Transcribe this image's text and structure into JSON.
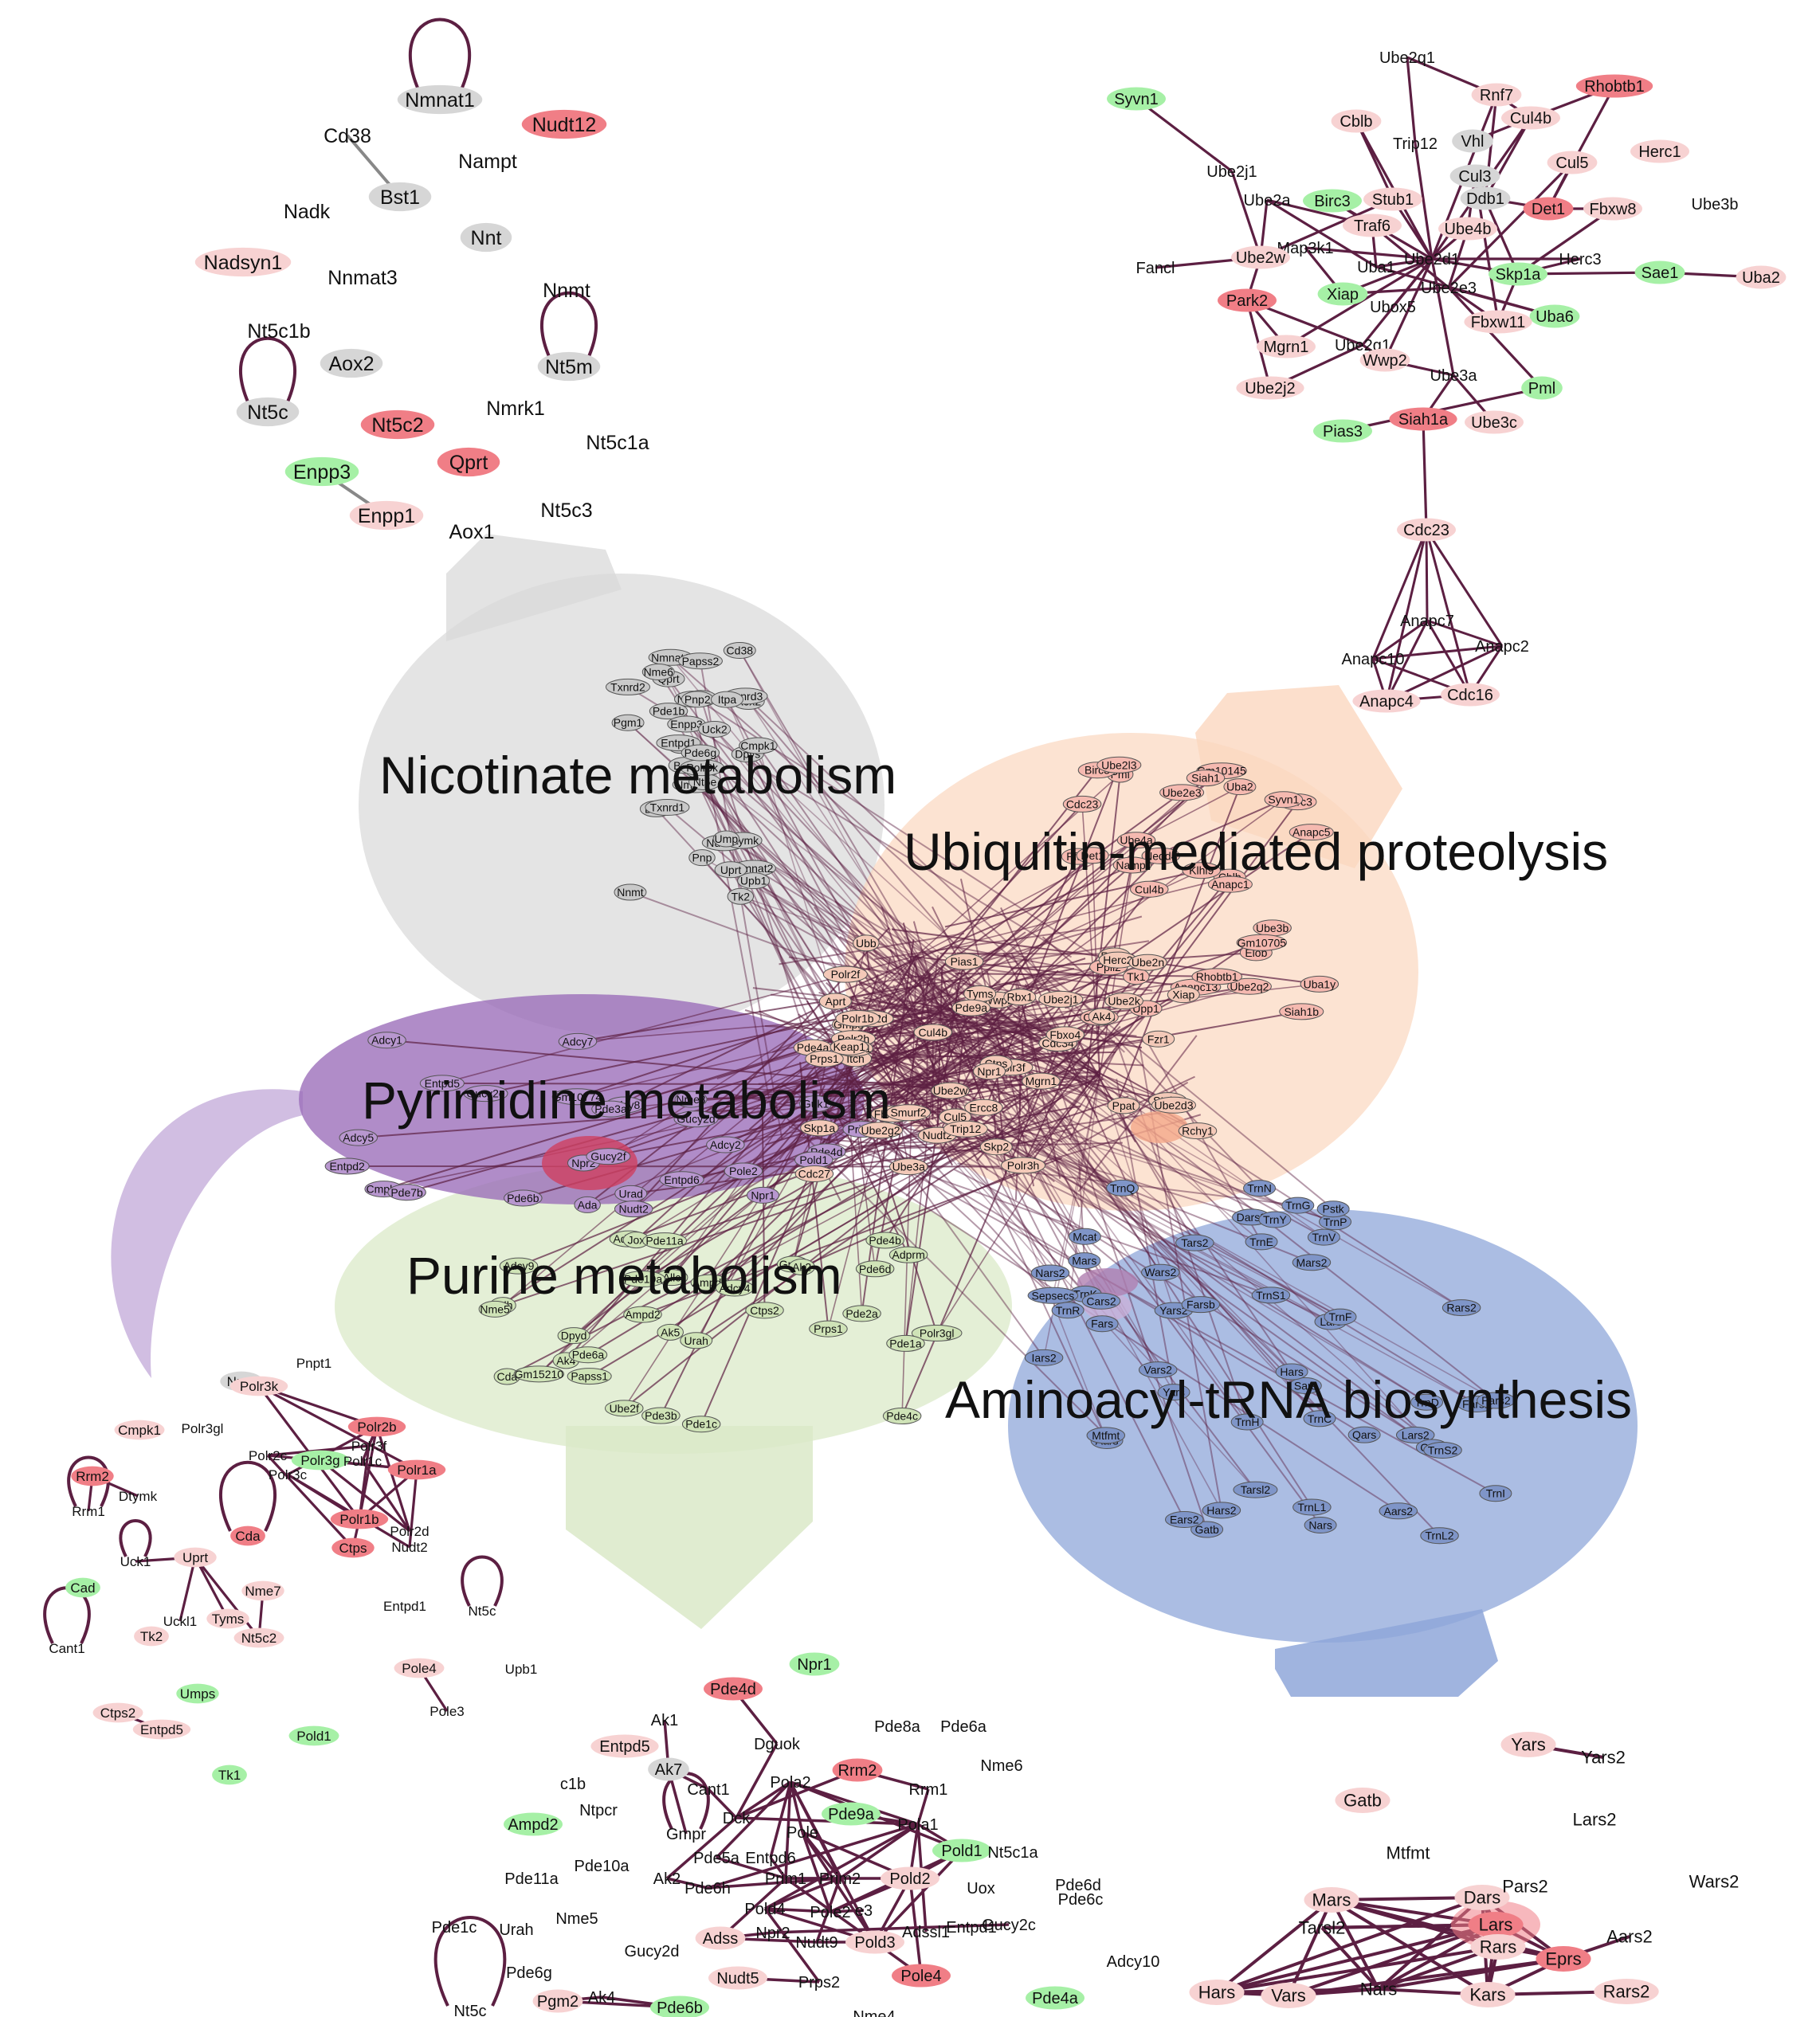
{
  "colors": {
    "edge": "#5c1f42",
    "pos_strong": "#f07e86",
    "pos_light": "#f7d2d2",
    "neg": "#a6f0a6",
    "neutral": "#d6d6d6",
    "nicotinate": "#d9d9d9",
    "ubiquitin": "#fbd7bf",
    "pyrimidine": "#9a6bb8",
    "purine": "#dbe9c8",
    "aminoacyl": "#8fa7d9"
  },
  "pathways": {
    "nicotinate": "Nicotinate metabolism",
    "ubiquitin": "Ubiquitin-mediated proteolysis",
    "pyrimidine": "Pyrimidine metabolism",
    "purine": "Purine metabolism",
    "aminoacyl": "Aminoacyl-tRNA biosynthesis"
  },
  "modules": {
    "nicotinate": {
      "nodes": [
        {
          "label": "Nmnat1",
          "c": "neutral"
        },
        {
          "label": "Nudt12",
          "c": "pos_strong"
        },
        {
          "label": "Cd38",
          "c": "none"
        },
        {
          "label": "Nampt",
          "c": "none"
        },
        {
          "label": "Bst1",
          "c": "neutral"
        },
        {
          "label": "Nadk",
          "c": "none"
        },
        {
          "label": "Nnt",
          "c": "neutral"
        },
        {
          "label": "Nadsyn1",
          "c": "pos_light"
        },
        {
          "label": "Nnmat3",
          "c": "none"
        },
        {
          "label": "Nnmt",
          "c": "none"
        },
        {
          "label": "Nt5c1b",
          "c": "none"
        },
        {
          "label": "Aox2",
          "c": "neutral"
        },
        {
          "label": "Nt5m",
          "c": "neutral"
        },
        {
          "label": "Nt5c",
          "c": "neutral"
        },
        {
          "label": "Nt5c2",
          "c": "pos_strong"
        },
        {
          "label": "Nmrk1",
          "c": "none"
        },
        {
          "label": "Nt5c1a",
          "c": "none"
        },
        {
          "label": "Qprt",
          "c": "pos_strong"
        },
        {
          "label": "Enpp3",
          "c": "neg"
        },
        {
          "label": "Enpp1",
          "c": "pos_light"
        },
        {
          "label": "Aox1",
          "c": "none"
        },
        {
          "label": "Nt5c3",
          "c": "none"
        }
      ],
      "edges": [
        [
          "Cd38",
          "Bst1"
        ],
        [
          "Enpp3",
          "Enpp1"
        ]
      ],
      "loops": [
        "Nmnat1",
        "Nt5m",
        "Nt5c"
      ]
    },
    "ubiquitin": {
      "nodes": [
        {
          "label": "Ube2q1",
          "c": "none"
        },
        {
          "label": "Syvn1",
          "c": "neg"
        },
        {
          "label": "Rnf7",
          "c": "pos_light"
        },
        {
          "label": "Rhobtb1",
          "c": "pos_strong"
        },
        {
          "label": "Cblb",
          "c": "pos_light"
        },
        {
          "label": "Cul4b",
          "c": "pos_light"
        },
        {
          "label": "Trip12",
          "c": "none"
        },
        {
          "label": "Vhl",
          "c": "neutral"
        },
        {
          "label": "Herc1",
          "c": "pos_light"
        },
        {
          "label": "Cul5",
          "c": "pos_light"
        },
        {
          "label": "Ube2j1",
          "c": "none"
        },
        {
          "label": "Cul3",
          "c": "neutral"
        },
        {
          "label": "Ube2a",
          "c": "none"
        },
        {
          "label": "Birc3",
          "c": "neg"
        },
        {
          "label": "Stub1",
          "c": "pos_light"
        },
        {
          "label": "Ddb1",
          "c": "neutral"
        },
        {
          "label": "Det1",
          "c": "pos_strong"
        },
        {
          "label": "Fbxw8",
          "c": "pos_light"
        },
        {
          "label": "Ube3b",
          "c": "none"
        },
        {
          "label": "Traf6",
          "c": "pos_light"
        },
        {
          "label": "Ube4b",
          "c": "pos_light"
        },
        {
          "label": "Map3k1",
          "c": "none"
        },
        {
          "label": "Ube2d1",
          "c": "none"
        },
        {
          "label": "Herc3",
          "c": "none"
        },
        {
          "label": "Fancl",
          "c": "none"
        },
        {
          "label": "Ube2w",
          "c": "pos_light"
        },
        {
          "label": "Uba1",
          "c": "none"
        },
        {
          "label": "Skp1a",
          "c": "neg"
        },
        {
          "label": "Sae1",
          "c": "neg"
        },
        {
          "label": "Uba2",
          "c": "pos_light"
        },
        {
          "label": "Park2",
          "c": "pos_strong"
        },
        {
          "label": "Xiap",
          "c": "neg"
        },
        {
          "label": "Ube2e3",
          "c": "none"
        },
        {
          "label": "Ubox5",
          "c": "none"
        },
        {
          "label": "Uba6",
          "c": "neg"
        },
        {
          "label": "Fbxw11",
          "c": "pos_light"
        },
        {
          "label": "Mgrn1",
          "c": "pos_light"
        },
        {
          "label": "Ube2g1",
          "c": "none"
        },
        {
          "label": "Wwp2",
          "c": "pos_light"
        },
        {
          "label": "Ube3a",
          "c": "none"
        },
        {
          "label": "Pml",
          "c": "neg"
        },
        {
          "label": "Ube2j2",
          "c": "pos_light"
        },
        {
          "label": "Siah1a",
          "c": "pos_strong"
        },
        {
          "label": "Ube3c",
          "c": "pos_light"
        },
        {
          "label": "Pias3",
          "c": "neg"
        },
        {
          "label": "Cdc23",
          "c": "pos_light"
        },
        {
          "label": "Anapc7",
          "c": "none"
        },
        {
          "label": "Anapc2",
          "c": "none"
        },
        {
          "label": "Anapc10",
          "c": "none"
        },
        {
          "label": "Anapc4",
          "c": "pos_light"
        },
        {
          "label": "Cdc16",
          "c": "pos_light"
        }
      ]
    },
    "pyrimidine": {
      "nodes": [
        {
          "label": "Pnpt1",
          "c": "none"
        },
        {
          "label": "Npr2",
          "c": "neutral"
        },
        {
          "label": "Polr3k",
          "c": "pos_light"
        },
        {
          "label": "Cmpk1",
          "c": "pos_light"
        },
        {
          "label": "Polr3gl",
          "c": "none"
        },
        {
          "label": "Polr2b",
          "c": "pos_strong"
        },
        {
          "label": "Polr3f",
          "c": "none"
        },
        {
          "label": "Polr2c",
          "c": "none"
        },
        {
          "label": "Polr3g",
          "c": "neg"
        },
        {
          "label": "Polr1c",
          "c": "none"
        },
        {
          "label": "Polr1a",
          "c": "pos_strong"
        },
        {
          "label": "Polr3c",
          "c": "none"
        },
        {
          "label": "Rrm2",
          "c": "pos_strong"
        },
        {
          "label": "Dtymk",
          "c": "none"
        },
        {
          "label": "Rrm1",
          "c": "none"
        },
        {
          "label": "Cda",
          "c": "pos_strong"
        },
        {
          "label": "Polr1b",
          "c": "pos_strong"
        },
        {
          "label": "Polr2d",
          "c": "none"
        },
        {
          "label": "Ctps",
          "c": "pos_strong"
        },
        {
          "label": "Nudt2",
          "c": "none"
        },
        {
          "label": "Uck1",
          "c": "none"
        },
        {
          "label": "Uprt",
          "c": "pos_light"
        },
        {
          "label": "Cad",
          "c": "neg"
        },
        {
          "label": "Nme7",
          "c": "pos_light"
        },
        {
          "label": "Nt5c",
          "c": "none"
        },
        {
          "label": "Entpd1",
          "c": "none"
        },
        {
          "label": "Uckl1",
          "c": "none"
        },
        {
          "label": "Tyms",
          "c": "pos_light"
        },
        {
          "label": "Tk2",
          "c": "pos_light"
        },
        {
          "label": "Nt5c2",
          "c": "pos_light"
        },
        {
          "label": "Cant1",
          "c": "none"
        },
        {
          "label": "Pole4",
          "c": "pos_light"
        },
        {
          "label": "Upb1",
          "c": "none"
        },
        {
          "label": "Umps",
          "c": "neg"
        },
        {
          "label": "Pole3",
          "c": "none"
        },
        {
          "label": "Ctps2",
          "c": "pos_light"
        },
        {
          "label": "Entpd5",
          "c": "pos_light"
        },
        {
          "label": "Pold1",
          "c": "neg"
        },
        {
          "label": "Tk1",
          "c": "neg"
        }
      ]
    },
    "purine": {
      "nodes": [
        {
          "label": "Pde4d",
          "c": "pos_strong"
        },
        {
          "label": "Npr1",
          "c": "neg"
        },
        {
          "label": "Ak1",
          "c": "none"
        },
        {
          "label": "Dguok",
          "c": "none"
        },
        {
          "label": "Entpd5",
          "c": "pos_light"
        },
        {
          "label": "Pde8a",
          "c": "none"
        },
        {
          "label": "Pde6a",
          "c": "none"
        },
        {
          "label": "Ak7",
          "c": "neutral"
        },
        {
          "label": "Rrm2",
          "c": "pos_strong"
        },
        {
          "label": "Nme6",
          "c": "none"
        },
        {
          "label": "c1b",
          "c": "none"
        },
        {
          "label": "Cant1",
          "c": "none"
        },
        {
          "label": "Pola2",
          "c": "none"
        },
        {
          "label": "Rrm1",
          "c": "none"
        },
        {
          "label": "Ntpcr",
          "c": "none"
        },
        {
          "label": "Pde9a",
          "c": "neg"
        },
        {
          "label": "Ampd2",
          "c": "neg"
        },
        {
          "label": "Gmpr",
          "c": "none"
        },
        {
          "label": "Dck",
          "c": "none"
        },
        {
          "label": "Pole",
          "c": "none"
        },
        {
          "label": "Pola1",
          "c": "none"
        },
        {
          "label": "Pde5a",
          "c": "none"
        },
        {
          "label": "Entpd6",
          "c": "none"
        },
        {
          "label": "Pold1",
          "c": "neg"
        },
        {
          "label": "Nt5c1a",
          "c": "none"
        },
        {
          "label": "Pde10a",
          "c": "none"
        },
        {
          "label": "Pde11a",
          "c": "none"
        },
        {
          "label": "Ak2",
          "c": "none"
        },
        {
          "label": "Pde6h",
          "c": "none"
        },
        {
          "label": "Prim1",
          "c": "none"
        },
        {
          "label": "Prim2",
          "c": "none"
        },
        {
          "label": "Pold2",
          "c": "pos_light"
        },
        {
          "label": "Uox",
          "c": "none"
        },
        {
          "label": "Pde6d",
          "c": "none"
        },
        {
          "label": "Pde6c",
          "c": "none"
        },
        {
          "label": "Nme5",
          "c": "none"
        },
        {
          "label": "Pde1c",
          "c": "none"
        },
        {
          "label": "Urah",
          "c": "none"
        },
        {
          "label": "Pold4",
          "c": "none"
        },
        {
          "label": "Pole2",
          "c": "none"
        },
        {
          "label": "e3",
          "c": "none"
        },
        {
          "label": "Adss",
          "c": "pos_light"
        },
        {
          "label": "Npr2",
          "c": "none"
        },
        {
          "label": "Adssl1",
          "c": "none"
        },
        {
          "label": "Entpd1",
          "c": "none"
        },
        {
          "label": "Gucy2c",
          "c": "none"
        },
        {
          "label": "Adcy10",
          "c": "none"
        },
        {
          "label": "Gucy2d",
          "c": "none"
        },
        {
          "label": "Nudt9",
          "c": "none"
        },
        {
          "label": "Pold3",
          "c": "pos_light"
        },
        {
          "label": "Pde6g",
          "c": "none"
        },
        {
          "label": "Nudt5",
          "c": "pos_light"
        },
        {
          "label": "Prps2",
          "c": "none"
        },
        {
          "label": "Pole4",
          "c": "pos_strong"
        },
        {
          "label": "Pde4a",
          "c": "neg"
        },
        {
          "label": "Nt5c",
          "c": "none"
        },
        {
          "label": "Pgm2",
          "c": "pos_light"
        },
        {
          "label": "Ak4",
          "c": "none"
        },
        {
          "label": "Pde6b",
          "c": "neg"
        },
        {
          "label": "Nme4",
          "c": "none"
        }
      ]
    },
    "aminoacyl": {
      "nodes": [
        {
          "label": "Yars",
          "c": "pos_light"
        },
        {
          "label": "Yars2",
          "c": "none"
        },
        {
          "label": "Gatb",
          "c": "pos_light"
        },
        {
          "label": "Lars2",
          "c": "none"
        },
        {
          "label": "Mtfmt",
          "c": "none"
        },
        {
          "label": "Wars2",
          "c": "none"
        },
        {
          "label": "Mars",
          "c": "pos_light"
        },
        {
          "label": "Dars",
          "c": "pos_light"
        },
        {
          "label": "Pars2",
          "c": "none"
        },
        {
          "label": "Lars",
          "c": "pos_strong"
        },
        {
          "label": "Aars2",
          "c": "none"
        },
        {
          "label": "Tarsl2",
          "c": "none"
        },
        {
          "label": "Rars",
          "c": "pos_light"
        },
        {
          "label": "Eprs",
          "c": "pos_strong"
        },
        {
          "label": "Rars2",
          "c": "pos_light"
        },
        {
          "label": "Hars",
          "c": "pos_light"
        },
        {
          "label": "Vars",
          "c": "pos_light"
        },
        {
          "label": "Nars",
          "c": "none"
        },
        {
          "label": "Kars",
          "c": "pos_light"
        }
      ]
    }
  },
  "merged": {
    "nicotinate_nodes": [
      "Nmnat3",
      "Aox2",
      "Nadk",
      "Nmnat2",
      "Nnt",
      "Nudt12",
      "Nmnat1",
      "Nmrk1",
      "Qprt",
      "Bst1",
      "Cd38",
      "Nnmt",
      "Dpys",
      "Txnrd2",
      "Nt5e",
      "Pde1b",
      "Tk2",
      "Uck1",
      "Enpp3",
      "Dtymk",
      "Uck2",
      "Upb1",
      "Uprt",
      "Pnp2",
      "Entpd1",
      "Dctd",
      "Txnrd3",
      "Papss2",
      "Cmpk1",
      "Txnrd1",
      "Pgm1",
      "Polr3k",
      "Pnp",
      "Pde6g",
      "Itpa",
      "Nme6",
      "Ump"
    ],
    "ubiquitin_nodes": [
      "Siah1b",
      "Uba1y",
      "Ube3b",
      "Gm10145",
      "Nedd4",
      "Nampt",
      "Elob",
      "Upp1",
      "Pfas",
      "Cblb",
      "Cdc16",
      "Anapc13",
      "Anapc1",
      "Ppil2",
      "Anapc5",
      "Cdc23",
      "Gm10705",
      "Ube2q2",
      "Tk1",
      "Pml",
      "Birc3",
      "Rhobtb1",
      "Herc3",
      "Siah1",
      "Cul4b",
      "Det1",
      "Ube4a",
      "Syvn1",
      "Ube2l3",
      "Uba2",
      "Ube2e3",
      "Klhl9"
    ],
    "pyrimidine_nodes": [
      "Entpd2",
      "Npr2",
      "Pde6b",
      "Adcy2",
      "Gucy2e",
      "Cmpk2",
      "Adcy1",
      "Entpd5",
      "Adcy5",
      "Gm10774",
      "Urad",
      "Adcy8",
      "Pde7b",
      "Gucy2d",
      "Pde4d",
      "Ada",
      "Guk1",
      "Gucy2f",
      "Npr1",
      "Nudt2",
      "Entpd6",
      "Adcy7",
      "Prim2",
      "Nme3",
      "Pole2",
      "Pde3a",
      "Pold1"
    ],
    "purine_nodes": [
      "Xdh",
      "Pde1c",
      "Gmpr",
      "Ak2",
      "Dpyd",
      "Adcy3",
      "Polr3gl",
      "Nme5",
      "Ak4",
      "Papss1",
      "Ube2f",
      "Ctps2",
      "Pde6d",
      "Ampd2",
      "Pde1a",
      "Adcy9",
      "Ampd3",
      "Ak5",
      "Jox",
      "Cda",
      "Urah",
      "Adprm",
      "Allc",
      "Pde11a",
      "Gm15210",
      "Pde4b",
      "Adcy4",
      "Pde10a",
      "Prps1",
      "Pde6a",
      "Pde4c",
      "Pde3b",
      "Pde2a"
    ],
    "aminoacyl_nodes": [
      "Mars",
      "Aars",
      "Nars",
      "Yars2",
      "Tars2",
      "Fars2",
      "Lars2",
      "Yars",
      "Mtfmt",
      "Pars2",
      "Farsb",
      "Sars",
      "Fars",
      "Gars",
      "Hars",
      "Lars",
      "Mcat",
      "Hars2",
      "Aars2",
      "Tarsl2",
      "Dars2",
      "Rars2",
      "Wars2",
      "TrnR",
      "Gatb",
      "TrnD",
      "TrnG",
      "TrnE",
      "TrnS1",
      "Vars2",
      "Mars2",
      "TrnC",
      "TrnY",
      "Iars2",
      "TrnN",
      "TrnP",
      "TrnK",
      "TrnH",
      "TrnI",
      "TrnQ",
      "TrnL2",
      "TrnS2",
      "TrnL1",
      "Sepsecs",
      "Pstk",
      "TrnF",
      "Ears2",
      "TrnV",
      "Qars",
      "Nars2",
      "Cars2"
    ],
    "core_nodes": [
      "Aprt",
      "Polr3f",
      "Polr3h",
      "Gmps",
      "Polr2f",
      "Polr2d",
      "Polr1b",
      "Polr2h",
      "Nudt2",
      "Ctps",
      "Stub1",
      "Cul5",
      "Wwp2",
      "Ube2k",
      "Cdc34",
      "Skp2",
      "Itch",
      "Tyms",
      "Ppat",
      "Fbxw11",
      "Huwe1",
      "Rrm1",
      "Pde9a",
      "Pde4a",
      "Ak4",
      "Prps1",
      "Npr1",
      "Skp1a",
      "Ercc8",
      "Herc2",
      "Rchy1",
      "Xiap",
      "Cul4b",
      "Ube2d3",
      "Fzr1",
      "Trip12",
      "Ube2g2",
      "Mgrn1",
      "Ube2w",
      "Keap1",
      "Pias1",
      "Rbx1",
      "Cdc27",
      "Ube2j1",
      "Ube3a",
      "Smurf2",
      "Fbxo4",
      "Ube2n",
      "Ubb"
    ]
  }
}
